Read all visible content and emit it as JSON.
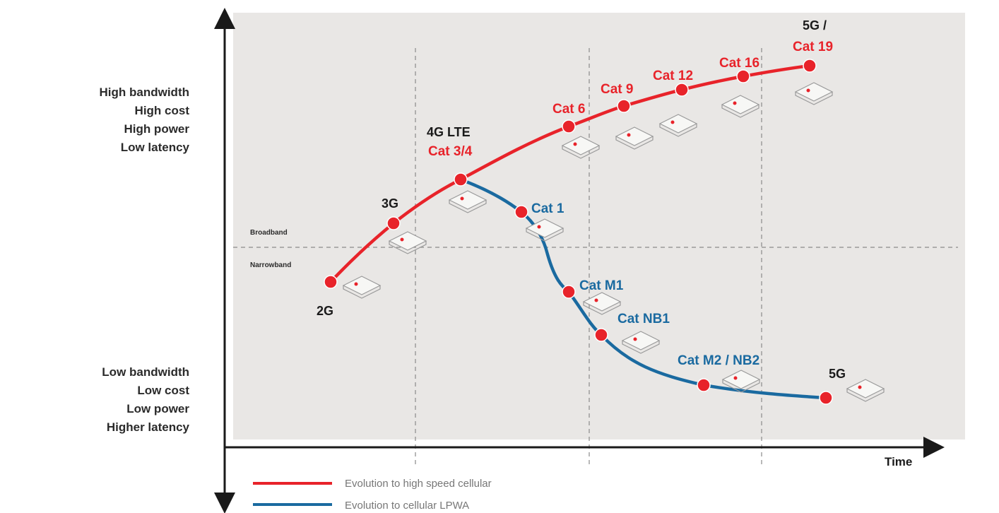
{
  "colors": {
    "high_speed": "#e8232a",
    "lpwa": "#1a6aa0",
    "plot_bg": "#e9e7e5",
    "axis": "#1a1a1a"
  },
  "y_top_labels": [
    "High bandwidth",
    "High cost",
    "High power",
    "Low latency"
  ],
  "y_bottom_labels": [
    "Low bandwidth",
    "Low cost",
    "Low power",
    "Higher latency"
  ],
  "zones": {
    "upper": "Broadband",
    "lower": "Narrowband"
  },
  "x_axis_label": "Time",
  "high_speed_nodes": [
    {
      "id": "2g",
      "name": "2G"
    },
    {
      "id": "3g",
      "name": "3G"
    },
    {
      "id": "4g",
      "name": "4G LTE",
      "sub": "Cat 3/4"
    },
    {
      "id": "cat6",
      "name": "Cat 6"
    },
    {
      "id": "cat9",
      "name": "Cat 9"
    },
    {
      "id": "cat12",
      "name": "Cat 12"
    },
    {
      "id": "cat16",
      "name": "Cat 16"
    },
    {
      "id": "cat19",
      "name": "5G /",
      "sub": "Cat 19"
    }
  ],
  "lpwa_nodes": [
    {
      "id": "cat1",
      "name": "Cat 1"
    },
    {
      "id": "catm1",
      "name": "Cat M1"
    },
    {
      "id": "catnb1",
      "name": "Cat NB1"
    },
    {
      "id": "catm2",
      "name": "Cat M2 / NB2"
    },
    {
      "id": "5g",
      "name": "5G"
    }
  ],
  "legend": [
    {
      "label": "Evolution to high speed cellular",
      "color": "#e8232a"
    },
    {
      "label": "Evolution to cellular LPWA",
      "color": "#1a6aa0"
    }
  ]
}
